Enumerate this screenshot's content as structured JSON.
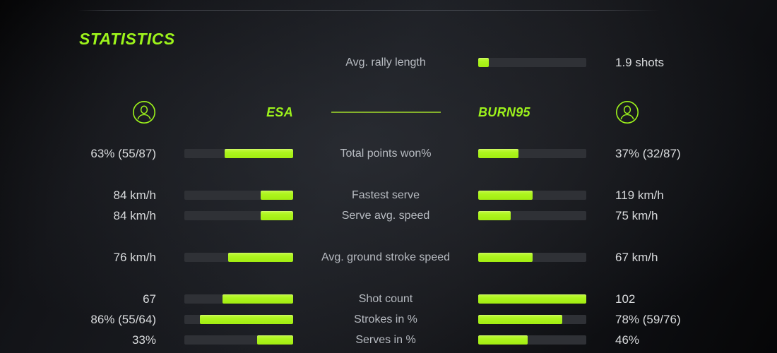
{
  "title": "STATISTICS",
  "colors": {
    "accent": "#9df31b",
    "bar_fill": "#adf51e",
    "bar_track": "#2f3136",
    "divider": "#84b02b"
  },
  "players": {
    "left": {
      "name": "ESA"
    },
    "right": {
      "name": "BURN95"
    }
  },
  "rally": {
    "label": "Avg. rally length",
    "value": "1.9 shots",
    "fill_pct": 10
  },
  "stats": [
    {
      "label": "Total points won%",
      "left_value": "63% (55/87)",
      "left_pct": 63,
      "right_value": "37% (32/87)",
      "right_pct": 37,
      "gap": false
    },
    {
      "label": "Fastest serve",
      "left_value": "84 km/h",
      "left_pct": 30,
      "right_value": "119 km/h",
      "right_pct": 50,
      "gap": true
    },
    {
      "label": "Serve avg. speed",
      "left_value": "84 km/h",
      "left_pct": 30,
      "right_value": "75 km/h",
      "right_pct": 30,
      "gap": false
    },
    {
      "label": "Avg. ground stroke speed",
      "left_value": "76 km/h",
      "left_pct": 60,
      "right_value": "67 km/h",
      "right_pct": 50,
      "gap": true
    },
    {
      "label": "Shot count",
      "left_value": "67",
      "left_pct": 65,
      "right_value": "102",
      "right_pct": 100,
      "gap": true
    },
    {
      "label": "Strokes in %",
      "left_value": "86% (55/64)",
      "left_pct": 86,
      "right_value": "78% (59/76)",
      "right_pct": 78,
      "gap": false
    },
    {
      "label": "Serves in %",
      "left_value": "33%",
      "left_pct": 33,
      "right_value": "46%",
      "right_pct": 46,
      "gap": false
    }
  ]
}
